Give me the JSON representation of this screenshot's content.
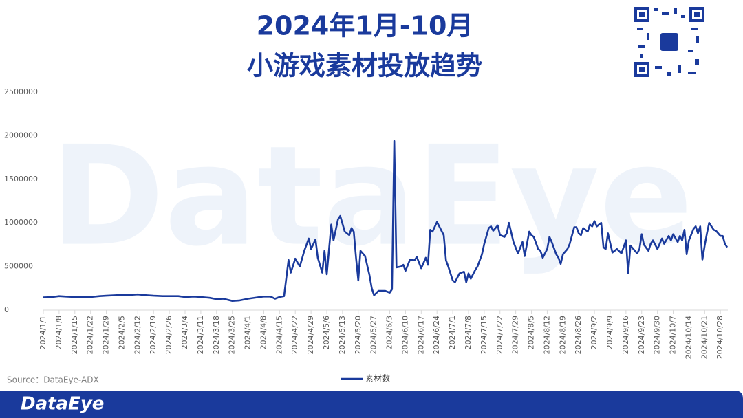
{
  "chart_data": {
    "type": "line",
    "title": [
      "2024年1月-10月",
      "小游戏素材投放趋势"
    ],
    "watermark": "DataEye",
    "source": "Source：DataEye-ADX",
    "logo": "DataEye",
    "x": [
      "2024/1/1",
      "2024/1/5",
      "2024/1/8",
      "2024/1/11",
      "2024/1/15",
      "2024/1/19",
      "2024/1/22",
      "2024/1/26",
      "2024/1/29",
      "2024/2/2",
      "2024/2/5",
      "2024/2/9",
      "2024/2/12",
      "2024/2/16",
      "2024/2/19",
      "2024/2/23",
      "2024/2/26",
      "2024/3/1",
      "2024/3/4",
      "2024/3/8",
      "2024/3/11",
      "2024/3/15",
      "2024/3/18",
      "2024/3/21",
      "2024/3/25",
      "2024/3/28",
      "2024/4/1",
      "2024/4/5",
      "2024/4/8",
      "2024/4/11",
      "2024/4/13",
      "2024/4/15",
      "2024/4/17",
      "2024/4/19",
      "2024/4/20",
      "2024/4/22",
      "2024/4/24",
      "2024/4/26",
      "2024/4/28",
      "2024/4/29",
      "2024/5/1",
      "2024/5/2",
      "2024/5/4",
      "2024/5/5",
      "2024/5/6",
      "2024/5/8",
      "2024/5/9",
      "2024/5/11",
      "2024/5/12",
      "2024/5/14",
      "2024/5/16",
      "2024/5/17",
      "2024/5/18",
      "2024/5/19",
      "2024/5/20",
      "2024/5/21",
      "2024/5/23",
      "2024/5/25",
      "2024/5/26",
      "2024/5/27",
      "2024/5/29",
      "2024/6/1",
      "2024/6/3",
      "2024/6/4",
      "2024/6/5",
      "2024/6/6",
      "2024/6/8",
      "2024/6/9",
      "2024/6/10",
      "2024/6/12",
      "2024/6/14",
      "2024/6/15",
      "2024/6/17",
      "2024/6/19",
      "2024/6/20",
      "2024/6/21",
      "2024/6/22",
      "2024/6/24",
      "2024/6/25",
      "2024/6/27",
      "2024/6/28",
      "2024/6/29",
      "2024/7/1",
      "2024/7/2",
      "2024/7/4",
      "2024/7/6",
      "2024/7/7",
      "2024/7/8",
      "2024/7/9",
      "2024/7/11",
      "2024/7/12",
      "2024/7/14",
      "2024/7/15",
      "2024/7/17",
      "2024/7/18",
      "2024/7/19",
      "2024/7/21",
      "2024/7/22",
      "2024/7/24",
      "2024/7/25",
      "2024/7/26",
      "2024/7/28",
      "2024/7/30",
      "2024/8/1",
      "2024/8/2",
      "2024/8/4",
      "2024/8/5",
      "2024/8/6",
      "2024/8/8",
      "2024/8/9",
      "2024/8/10",
      "2024/8/12",
      "2024/8/13",
      "2024/8/14",
      "2024/8/16",
      "2024/8/17",
      "2024/8/18",
      "2024/8/19",
      "2024/8/21",
      "2024/8/22",
      "2024/8/24",
      "2024/8/25",
      "2024/8/26",
      "2024/8/27",
      "2024/8/28",
      "2024/8/30",
      "2024/8/31",
      "2024/9/1",
      "2024/9/2",
      "2024/9/3",
      "2024/9/5",
      "2024/9/6",
      "2024/9/7",
      "2024/9/8",
      "2024/9/10",
      "2024/9/12",
      "2024/9/14",
      "2024/9/16",
      "2024/9/17",
      "2024/9/18",
      "2024/9/21",
      "2024/9/22",
      "2024/9/23",
      "2024/9/24",
      "2024/9/26",
      "2024/9/27",
      "2024/9/28",
      "2024/9/30",
      "2024/10/2",
      "2024/10/3",
      "2024/10/5",
      "2024/10/6",
      "2024/10/7",
      "2024/10/9",
      "2024/10/10",
      "2024/10/11",
      "2024/10/12",
      "2024/10/13",
      "2024/10/14",
      "2024/10/16",
      "2024/10/17",
      "2024/10/18",
      "2024/10/19",
      "2024/10/20",
      "2024/10/21",
      "2024/10/22",
      "2024/10/23",
      "2024/10/25",
      "2024/10/26",
      "2024/10/28",
      "2024/10/29",
      "2024/10/30",
      "2024/10/31"
    ],
    "series": [
      {
        "name": "素材数",
        "color": "#1a3a9c",
        "values": [
          145000,
          150000,
          160000,
          155000,
          150000,
          150000,
          150000,
          160000,
          165000,
          170000,
          175000,
          175000,
          180000,
          170000,
          165000,
          160000,
          160000,
          160000,
          150000,
          155000,
          150000,
          140000,
          125000,
          130000,
          105000,
          110000,
          130000,
          145000,
          155000,
          155000,
          130000,
          150000,
          160000,
          575000,
          430000,
          590000,
          500000,
          680000,
          820000,
          700000,
          810000,
          600000,
          430000,
          680000,
          410000,
          980000,
          800000,
          1040000,
          1080000,
          900000,
          860000,
          940000,
          900000,
          600000,
          340000,
          680000,
          620000,
          400000,
          250000,
          170000,
          220000,
          220000,
          200000,
          240000,
          1940000,
          490000,
          500000,
          520000,
          450000,
          580000,
          570000,
          610000,
          480000,
          600000,
          520000,
          920000,
          900000,
          1010000,
          960000,
          860000,
          570000,
          500000,
          340000,
          320000,
          420000,
          440000,
          320000,
          420000,
          360000,
          460000,
          500000,
          640000,
          760000,
          940000,
          960000,
          910000,
          970000,
          860000,
          840000,
          880000,
          1000000,
          780000,
          650000,
          780000,
          620000,
          900000,
          860000,
          840000,
          700000,
          680000,
          600000,
          700000,
          840000,
          780000,
          640000,
          600000,
          530000,
          640000,
          700000,
          760000,
          950000,
          950000,
          880000,
          860000,
          940000,
          900000,
          980000,
          960000,
          1020000,
          960000,
          1000000,
          720000,
          700000,
          880000,
          660000,
          700000,
          650000,
          800000,
          420000,
          740000,
          650000,
          700000,
          870000,
          750000,
          680000,
          760000,
          800000,
          700000,
          820000,
          760000,
          850000,
          800000,
          870000,
          780000,
          850000,
          800000,
          920000,
          640000,
          800000,
          930000,
          960000,
          880000,
          960000,
          580000,
          740000,
          880000,
          1000000,
          920000,
          910000,
          850000,
          850000,
          760000,
          720000
        ]
      }
    ],
    "xlim": [
      "2024/1/1",
      "2024/10/31"
    ],
    "xticks": [
      "2024/1/1",
      "2024/1/8",
      "2024/1/15",
      "2024/1/22",
      "2024/1/29",
      "2024/2/5",
      "2024/2/12",
      "2024/2/19",
      "2024/2/26",
      "2024/3/4",
      "2024/3/11",
      "2024/3/18",
      "2024/3/25",
      "2024/4/1",
      "2024/4/8",
      "2024/4/15",
      "2024/4/22",
      "2024/4/29",
      "2024/5/6",
      "2024/5/13",
      "2024/5/20",
      "2024/5/27",
      "2024/6/3",
      "2024/6/10",
      "2024/6/17",
      "2024/6/24",
      "2024/7/1",
      "2024/7/8",
      "2024/7/15",
      "2024/7/22",
      "2024/7/29",
      "2024/8/5",
      "2024/8/12",
      "2024/8/19",
      "2024/8/26",
      "2024/9/2",
      "2024/9/9",
      "2024/9/16",
      "2024/9/23",
      "2024/9/30",
      "2024/10/7",
      "2024/10/14",
      "2024/10/21",
      "2024/10/28"
    ],
    "ylim": [
      0,
      2500000
    ],
    "yticks": [
      0,
      500000,
      1000000,
      1500000,
      2000000,
      2500000
    ],
    "grid": false,
    "legend": "bottom"
  }
}
